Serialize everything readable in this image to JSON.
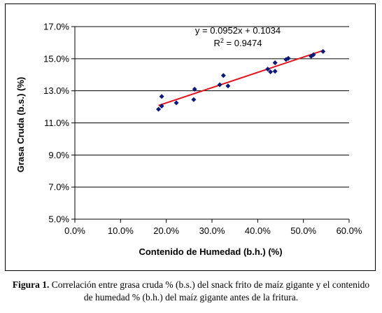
{
  "chart_data": {
    "type": "scatter",
    "xlabel": "Contenido de Humedad (b.h.) (%)",
    "ylabel": "Grasa Cruda (b.s.) (%)",
    "xlim": [
      0.0,
      0.6
    ],
    "ylim": [
      0.05,
      0.17
    ],
    "x_ticks": [
      0.0,
      0.1,
      0.2,
      0.3,
      0.4,
      0.5,
      0.6
    ],
    "y_ticks": [
      0.05,
      0.07,
      0.09,
      0.11,
      0.13,
      0.15,
      0.17
    ],
    "x_tick_labels": [
      "0.0%",
      "10.0%",
      "20.0%",
      "30.0%",
      "40.0%",
      "50.0%",
      "60.0%"
    ],
    "y_tick_labels": [
      "5.0%",
      "7.0%",
      "9.0%",
      "11.0%",
      "13.0%",
      "15.0%",
      "17.0%"
    ],
    "grid": "horizontal",
    "points": [
      {
        "x": 0.183,
        "y": 0.1185
      },
      {
        "x": 0.19,
        "y": 0.1205
      },
      {
        "x": 0.19,
        "y": 0.1265
      },
      {
        "x": 0.222,
        "y": 0.1225
      },
      {
        "x": 0.26,
        "y": 0.1245
      },
      {
        "x": 0.262,
        "y": 0.131
      },
      {
        "x": 0.317,
        "y": 0.1338
      },
      {
        "x": 0.325,
        "y": 0.1395
      },
      {
        "x": 0.335,
        "y": 0.133
      },
      {
        "x": 0.422,
        "y": 0.1435
      },
      {
        "x": 0.428,
        "y": 0.1418
      },
      {
        "x": 0.438,
        "y": 0.1475
      },
      {
        "x": 0.438,
        "y": 0.1422
      },
      {
        "x": 0.462,
        "y": 0.1495
      },
      {
        "x": 0.467,
        "y": 0.1502
      },
      {
        "x": 0.517,
        "y": 0.1515
      },
      {
        "x": 0.522,
        "y": 0.1525
      },
      {
        "x": 0.543,
        "y": 0.1545
      }
    ],
    "trendline": {
      "slope": 0.0952,
      "intercept": 0.1034,
      "x_range": [
        0.183,
        0.543
      ],
      "color": "#e0141e"
    },
    "marker_color": "#0a1a78",
    "equation_label": "y = 0.0952x + 0.1034",
    "r2_label_prefix": "R",
    "r2_label_sup": "2",
    "r2_label_value": " = 0.9474"
  },
  "caption": {
    "label": "Figura 1.",
    "text": " Correlación entre grasa cruda % (b.s.) del snack frito de maíz gigante y el contenido de humedad % (b.h.) del maíz gigante antes de la fritura."
  }
}
